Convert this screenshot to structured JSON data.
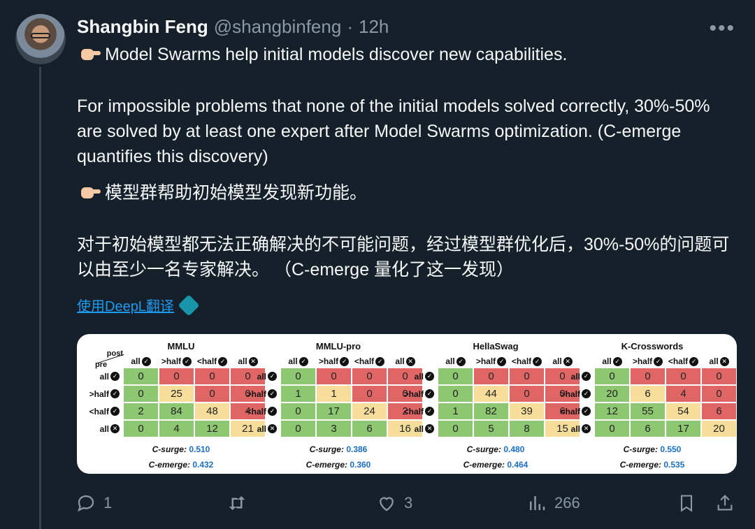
{
  "tweet": {
    "name": "Shangbin Feng",
    "handle": "@shangbinfeng",
    "separator": "·",
    "time": "12h",
    "more": "•••",
    "line1": "Model Swarms help initial models discover new capabilities.",
    "para2": "For impossible problems that none of the initial models solved correctly, 30%-50% are solved by at least one expert after Model Swarms optimization. (C-emerge quantifies this discovery)",
    "zh_line1": "模型群帮助初始模型发现新功能。",
    "zh_para2": "对于初始模型都无法正确解决的不可能问题，经过模型群优化后，30%-50%的问题可以由至少一名专家解决。 （C-emerge 量化了这一发现）",
    "translate_link": "使用DeepL翻译"
  },
  "figure": {
    "corner_post": "post",
    "corner_pre": "pre",
    "col_headers": [
      "all",
      ">half",
      "<half",
      "all"
    ],
    "row_headers": [
      "all",
      ">half",
      "<half",
      "all"
    ],
    "cell_colors": [
      [
        "green",
        "red",
        "red",
        "red"
      ],
      [
        "green",
        "yellow",
        "red",
        "red"
      ],
      [
        "green",
        "green",
        "yellow",
        "red"
      ],
      [
        "green",
        "green",
        "green",
        "yellow"
      ]
    ],
    "colors": {
      "red": "#e06666",
      "yellow": "#f6dd9a",
      "green": "#8ec772",
      "metric_value": "#1a6fc4"
    },
    "surge_label": "C-surge:",
    "emerge_label": "C-emerge:",
    "panels": [
      {
        "title": "MMLU",
        "matrix": [
          [
            "0",
            "0",
            "0",
            "0"
          ],
          [
            "0",
            "25",
            "0",
            "0"
          ],
          [
            "2",
            "84",
            "48",
            "4"
          ],
          [
            "0",
            "4",
            "12",
            "21"
          ]
        ],
        "c_surge": "0.510",
        "c_emerge": "0.432"
      },
      {
        "title": "MMLU-pro",
        "matrix": [
          [
            "0",
            "0",
            "0",
            "0"
          ],
          [
            "1",
            "1",
            "0",
            "0"
          ],
          [
            "0",
            "17",
            "24",
            "2"
          ],
          [
            "0",
            "3",
            "6",
            "16"
          ]
        ],
        "c_surge": "0.386",
        "c_emerge": "0.360"
      },
      {
        "title": "HellaSwag",
        "matrix": [
          [
            "0",
            "0",
            "0",
            "0"
          ],
          [
            "0",
            "44",
            "0",
            "0"
          ],
          [
            "1",
            "82",
            "39",
            "6"
          ],
          [
            "0",
            "5",
            "8",
            "15"
          ]
        ],
        "c_surge": "0.480",
        "c_emerge": "0.464"
      },
      {
        "title": "K-Crosswords",
        "matrix": [
          [
            "0",
            "0",
            "0",
            "0"
          ],
          [
            "20",
            "6",
            "4",
            "0"
          ],
          [
            "12",
            "55",
            "54",
            "6"
          ],
          [
            "0",
            "6",
            "17",
            "20"
          ]
        ],
        "c_surge": "0.550",
        "c_emerge": "0.535"
      }
    ]
  },
  "actions": {
    "reply_count": "1",
    "retweet_count": "",
    "like_count": "3",
    "views_count": "266"
  }
}
